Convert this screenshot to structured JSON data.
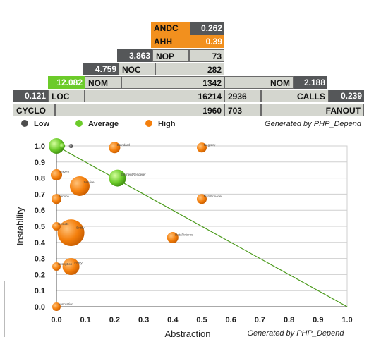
{
  "pyramid": {
    "andc": {
      "label": "ANDC",
      "value": "0.262"
    },
    "ahh": {
      "label": "AHH",
      "value": "0.39"
    },
    "nop": {
      "label": "NOP",
      "ratio": "3.863",
      "value": "73"
    },
    "noc": {
      "label": "NOC",
      "ratio": "4.759",
      "value": "282"
    },
    "nom_left": {
      "label": "NOM",
      "ratio": "12.082",
      "value": "1342"
    },
    "loc": {
      "label": "LOC",
      "ratio": "0.121",
      "value": "16214"
    },
    "cyclo": {
      "label": "CYCLO",
      "value": "1960"
    },
    "nom_right": {
      "label": "NOM",
      "ratio": "2.188"
    },
    "calls": {
      "label": "CALLS",
      "value": "2936",
      "ratio": "0.239"
    },
    "fanout": {
      "label": "FANOUT",
      "value": "703"
    }
  },
  "legend": {
    "low": {
      "label": "Low",
      "color": "#4d4d4d"
    },
    "average": {
      "label": "Average",
      "color": "#6ccb2a"
    },
    "high": {
      "label": "High",
      "color": "#f47f0c"
    }
  },
  "pyramid_generated": "Generated  by PHP_Depend",
  "chart_data": {
    "type": "scatter",
    "xlabel": "Abstraction",
    "ylabel": "Instability",
    "generated": "Generated  by PHP_Depend",
    "xlim": [
      0,
      1
    ],
    "ylim": [
      0,
      1
    ],
    "xticks": [
      "0.0",
      "0.1",
      "0.2",
      "0.3",
      "0.4",
      "0.5",
      "0.6",
      "0.7",
      "0.8",
      "0.9",
      "1.0"
    ],
    "yticks": [
      "0.0",
      "0.1",
      "0.2",
      "0.3",
      "0.4",
      "0.5",
      "0.6",
      "0.7",
      "0.8",
      "0.9",
      "1.0"
    ],
    "grid": true,
    "main_sequence": [
      [
        0,
        1
      ],
      [
        1,
        0
      ]
    ],
    "points": [
      {
        "x": 0.0,
        "y": 1.0,
        "size": 11,
        "color": "#6ccb2a",
        "label": ""
      },
      {
        "x": 0.02,
        "y": 1.0,
        "size": 4,
        "color": "#6ccb2a",
        "label": ""
      },
      {
        "x": 0.05,
        "y": 1.0,
        "size": 3,
        "color": "#4d4d4d",
        "label": ""
      },
      {
        "x": 0.2,
        "y": 0.99,
        "size": 8,
        "color": "#f47f0c",
        "label": "Standard"
      },
      {
        "x": 0.5,
        "y": 0.99,
        "size": 7,
        "color": "#f47f0c",
        "label": "Registry"
      },
      {
        "x": 0.0,
        "y": 0.82,
        "size": 8,
        "color": "#f47f0c",
        "label": "Service"
      },
      {
        "x": 0.08,
        "y": 0.75,
        "size": 14,
        "color": "#f47f0c",
        "label": "Service"
      },
      {
        "x": 0.21,
        "y": 0.8,
        "size": 12,
        "color": "#6ccb2a",
        "label": "ElementRenderer"
      },
      {
        "x": 0.0,
        "y": 0.67,
        "size": 7,
        "color": "#f47f0c",
        "label": "Service"
      },
      {
        "x": 0.5,
        "y": 0.67,
        "size": 7,
        "color": "#f47f0c",
        "label": "DataProvider"
      },
      {
        "x": 0.0,
        "y": 0.5,
        "size": 6,
        "color": "#f47f0c",
        "label": "Results"
      },
      {
        "x": 0.05,
        "y": 0.46,
        "size": 19,
        "color": "#f47f0c",
        "label": "Entity"
      },
      {
        "x": 0.4,
        "y": 0.43,
        "size": 8,
        "color": "#f47f0c",
        "label": "DataFixtures"
      },
      {
        "x": 0.0,
        "y": 0.25,
        "size": 6,
        "color": "#f47f0c",
        "label": "Exception"
      },
      {
        "x": 0.05,
        "y": 0.25,
        "size": 12,
        "color": "#f47f0c",
        "label": "Entity"
      },
      {
        "x": 0.0,
        "y": 0.0,
        "size": 6,
        "color": "#f47f0c",
        "label": "Annotation"
      }
    ]
  }
}
